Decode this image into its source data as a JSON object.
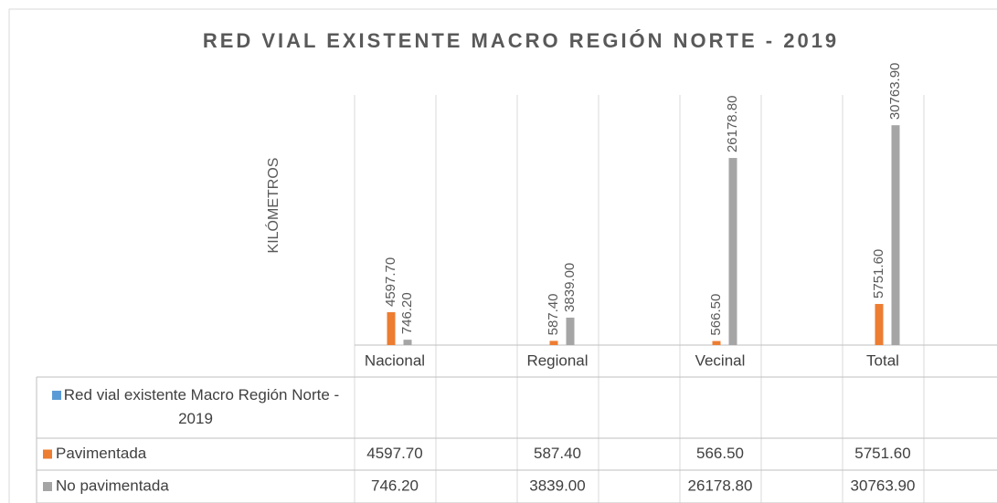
{
  "chart_data": {
    "type": "bar",
    "title": "RED VIAL EXISTENTE MACRO REGIÓN NORTE - 2019",
    "y_label": "KILÓMETROS",
    "categories": [
      "Nacional",
      "Regional",
      "Vecinal",
      "Total"
    ],
    "series": [
      {
        "name": "Red vial existente Macro Región Norte - 2019",
        "color": "#5b9bd5",
        "values": [
          null,
          null,
          null,
          null
        ]
      },
      {
        "name": "Pavimentada",
        "color": "#ed7d31",
        "values": [
          4597.7,
          587.4,
          566.5,
          5751.6
        ],
        "value_labels": [
          "4597.70",
          "587.40",
          "566.50",
          "5751.60"
        ]
      },
      {
        "name": "No pavimentada",
        "color": "#a5a5a5",
        "values": [
          746.2,
          3839.0,
          26178.8,
          30763.9
        ],
        "value_labels": [
          "746.20",
          "3839.00",
          "26178.80",
          "30763.90"
        ]
      }
    ],
    "ylim": [
      0,
      35000
    ],
    "data_table": true
  }
}
